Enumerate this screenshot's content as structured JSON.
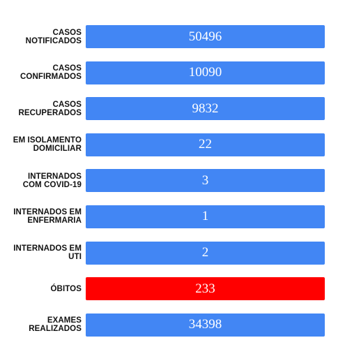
{
  "colors": {
    "bar_default": "#4286f4",
    "bar_highlight": "#ff0000"
  },
  "rows": [
    {
      "label_line1": "CASOS",
      "label_line2": "NOTIFICADOS",
      "value": "50496",
      "highlight": false
    },
    {
      "label_line1": "CASOS",
      "label_line2": "CONFIRMADOS",
      "value": "10090",
      "highlight": false
    },
    {
      "label_line1": "CASOS",
      "label_line2": "RECUPERADOS",
      "value": "9832",
      "highlight": false
    },
    {
      "label_line1": "EM ISOLAMENTO",
      "label_line2": "DOMICILIAR",
      "value": "22",
      "highlight": false
    },
    {
      "label_line1": "INTERNADOS",
      "label_line2": "COM COVID-19",
      "value": "3",
      "highlight": false
    },
    {
      "label_line1": "INTERNADOS EM",
      "label_line2": "ENFERMARIA",
      "value": "1",
      "highlight": false
    },
    {
      "label_line1": "INTERNADOS EM",
      "label_line2": "UTI",
      "value": "2",
      "highlight": false
    },
    {
      "label_line1": "ÓBITOS",
      "label_line2": "",
      "value": "233",
      "highlight": true
    },
    {
      "label_line1": "EXAMES",
      "label_line2": "REALIZADOS",
      "value": "34398",
      "highlight": false
    }
  ]
}
